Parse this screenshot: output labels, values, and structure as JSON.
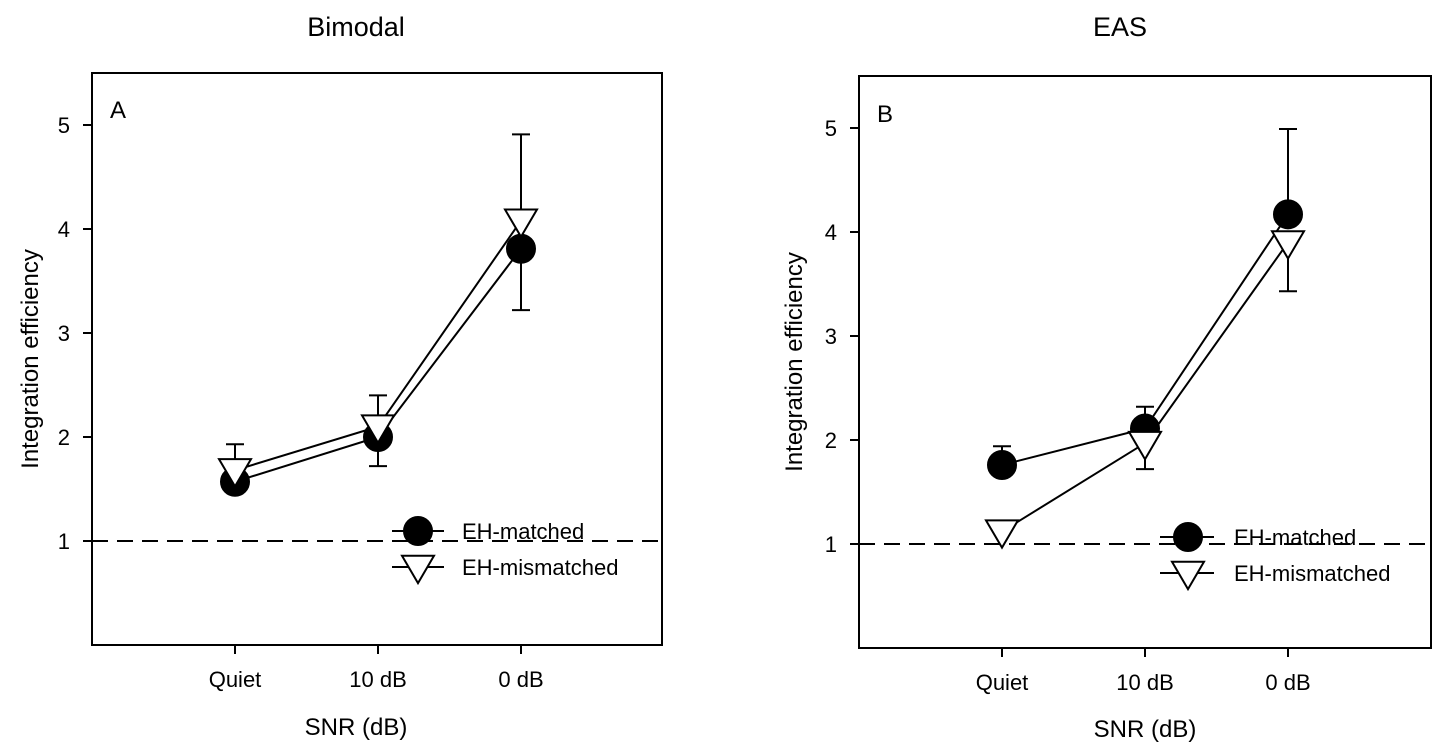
{
  "chart_data": [
    {
      "type": "line",
      "title": "Bimodal",
      "panel_label": "A",
      "xlabel": "SNR (dB)",
      "ylabel": "Integration efficiency",
      "categories": [
        "Quiet",
        "10 dB",
        "0 dB"
      ],
      "ylim": [
        0,
        5.5
      ],
      "yticks": [
        1,
        2,
        3,
        4,
        5
      ],
      "reference_line": 1,
      "grid": false,
      "legend_position": "bottom-right",
      "series": [
        {
          "name": "EH-matched",
          "marker": "filled-circle",
          "values": [
            1.57,
            2.0,
            3.81
          ],
          "errors": [
            0.1,
            0.28,
            0.59
          ]
        },
        {
          "name": "EH-mismatched",
          "marker": "open-triangle-down",
          "values": [
            1.68,
            2.1,
            4.08
          ],
          "errors": [
            0.25,
            0.3,
            0.83
          ]
        }
      ]
    },
    {
      "type": "line",
      "title": "EAS",
      "panel_label": "B",
      "xlabel": "SNR (dB)",
      "ylabel": "Integration efficiency",
      "categories": [
        "Quiet",
        "10 dB",
        "0 dB"
      ],
      "ylim": [
        0,
        5.5
      ],
      "yticks": [
        1,
        2,
        3,
        4,
        5
      ],
      "reference_line": 1,
      "grid": false,
      "legend_position": "bottom-right",
      "series": [
        {
          "name": "EH-matched",
          "marker": "filled-circle",
          "values": [
            1.76,
            2.11,
            4.17
          ],
          "errors": [
            0.18,
            0.21,
            0.82
          ]
        },
        {
          "name": "EH-mismatched",
          "marker": "open-triangle-down",
          "values": [
            1.12,
            1.97,
            3.9
          ],
          "errors": [
            0.0,
            0.25,
            0.47
          ]
        }
      ]
    }
  ]
}
